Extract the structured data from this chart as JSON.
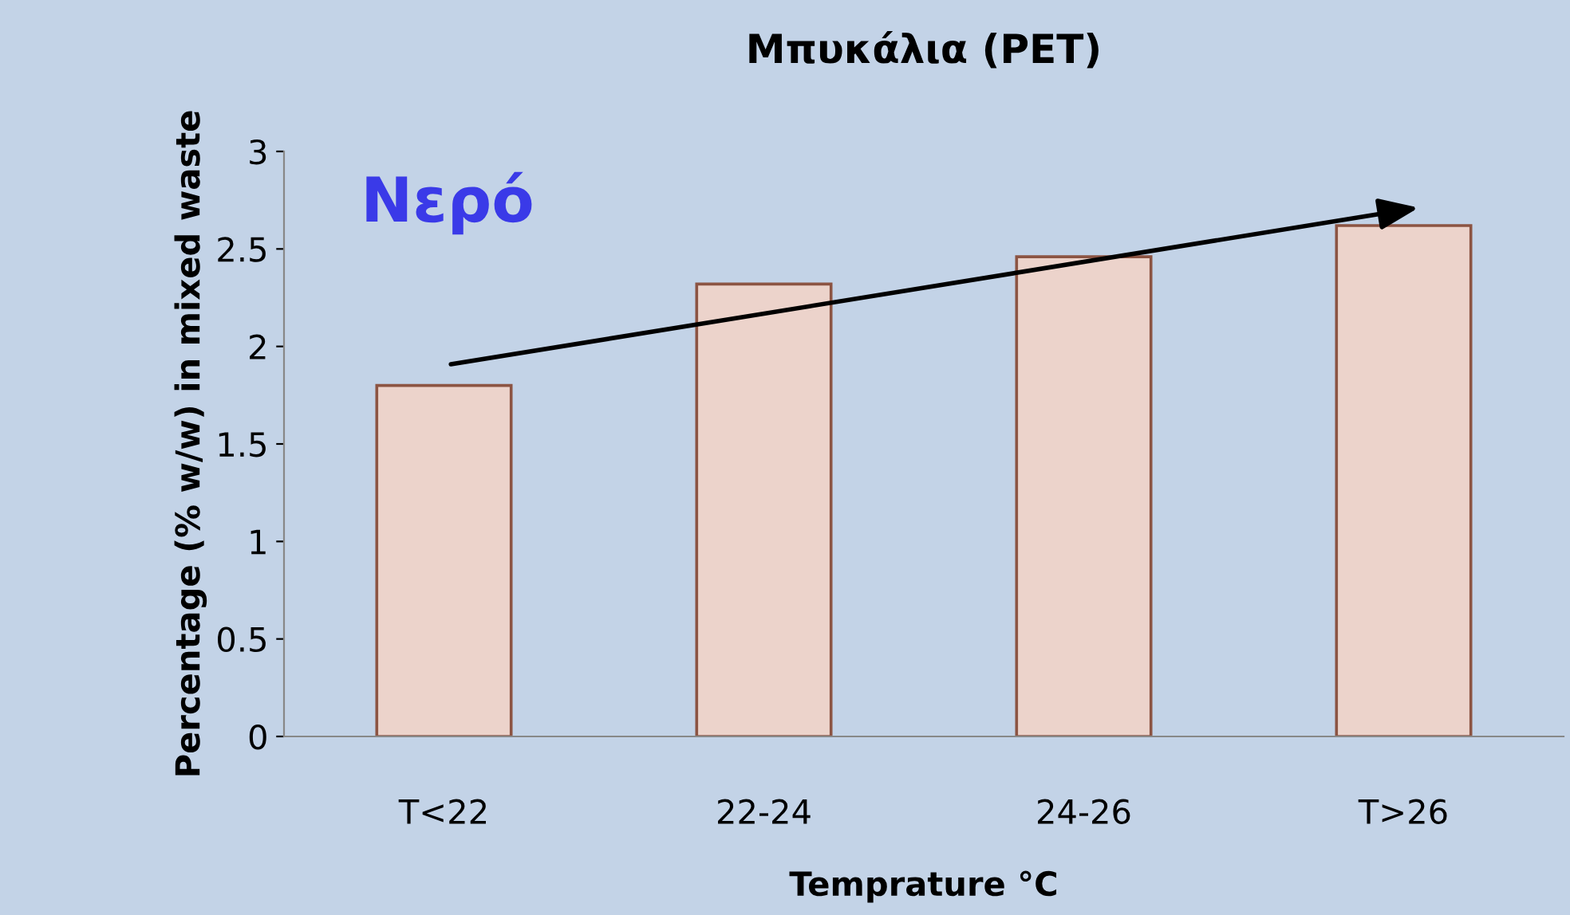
{
  "chart_data": {
    "type": "bar",
    "title": "Μπυκάλια (PET)",
    "xlabel": "Temprature °C",
    "ylabel": "Percentage (% w/w) in mixed waste",
    "categories": [
      "T<22",
      "22-24",
      "24-26",
      "T>26"
    ],
    "values": [
      1.8,
      2.32,
      2.46,
      2.62
    ],
    "color": "#ecd3cb",
    "ylim": [
      0,
      3
    ],
    "yticks": [
      0,
      0.5,
      1,
      1.5,
      2,
      2.5,
      3
    ],
    "grid": false,
    "legend": false,
    "annotations": [
      "Νερό"
    ]
  }
}
